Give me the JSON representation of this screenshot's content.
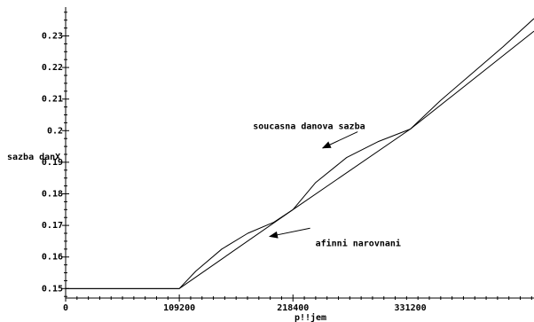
{
  "chart_data": {
    "type": "line",
    "xlabel": "p!!jem",
    "ylabel": "sazba danX",
    "xlim": [
      0,
      450000
    ],
    "ylim": [
      0.147,
      0.238
    ],
    "x_ticks": [
      {
        "value": 0,
        "label": "0"
      },
      {
        "value": 109200,
        "label": "109200"
      },
      {
        "value": 218400,
        "label": "218400"
      },
      {
        "value": 331200,
        "label": "331200"
      }
    ],
    "y_ticks": [
      {
        "value": 0.15,
        "label": "0.15"
      },
      {
        "value": 0.16,
        "label": "0.16"
      },
      {
        "value": 0.17,
        "label": "0.17"
      },
      {
        "value": 0.18,
        "label": "0.18"
      },
      {
        "value": 0.19,
        "label": "0.19"
      },
      {
        "value": 0.2,
        "label": "0.2"
      },
      {
        "value": 0.21,
        "label": "0.21"
      },
      {
        "value": 0.22,
        "label": "0.22"
      },
      {
        "value": 0.23,
        "label": "0.23"
      }
    ],
    "grid": false,
    "series": [
      {
        "name": "soucasna danova sazba",
        "color": "#000000",
        "x": [
          0,
          109200,
          125000,
          150000,
          175000,
          200000,
          218400,
          240000,
          270000,
          300000,
          331200,
          360000,
          390000,
          420000,
          450000
        ],
        "y": [
          0.15,
          0.15,
          0.1555,
          0.1625,
          0.1675,
          0.171,
          0.175,
          0.1835,
          0.1915,
          0.1965,
          0.2005,
          0.2095,
          0.218,
          0.2265,
          0.2355
        ]
      },
      {
        "name": "afinni narovnani",
        "color": "#000000",
        "x": [
          0,
          109200,
          218400,
          331200,
          450000
        ],
        "y": [
          0.15,
          0.15,
          0.175,
          0.2005,
          0.2315
        ]
      }
    ],
    "annotations": [
      {
        "text": "soucasna danova sazba",
        "x": 180000,
        "y": 0.2005,
        "arrow_to": [
          247000,
          0.1945
        ]
      },
      {
        "text": "afinni narovnani",
        "x": 240000,
        "y": 0.1635,
        "arrow_to": [
          196000,
          0.1665
        ]
      }
    ]
  }
}
